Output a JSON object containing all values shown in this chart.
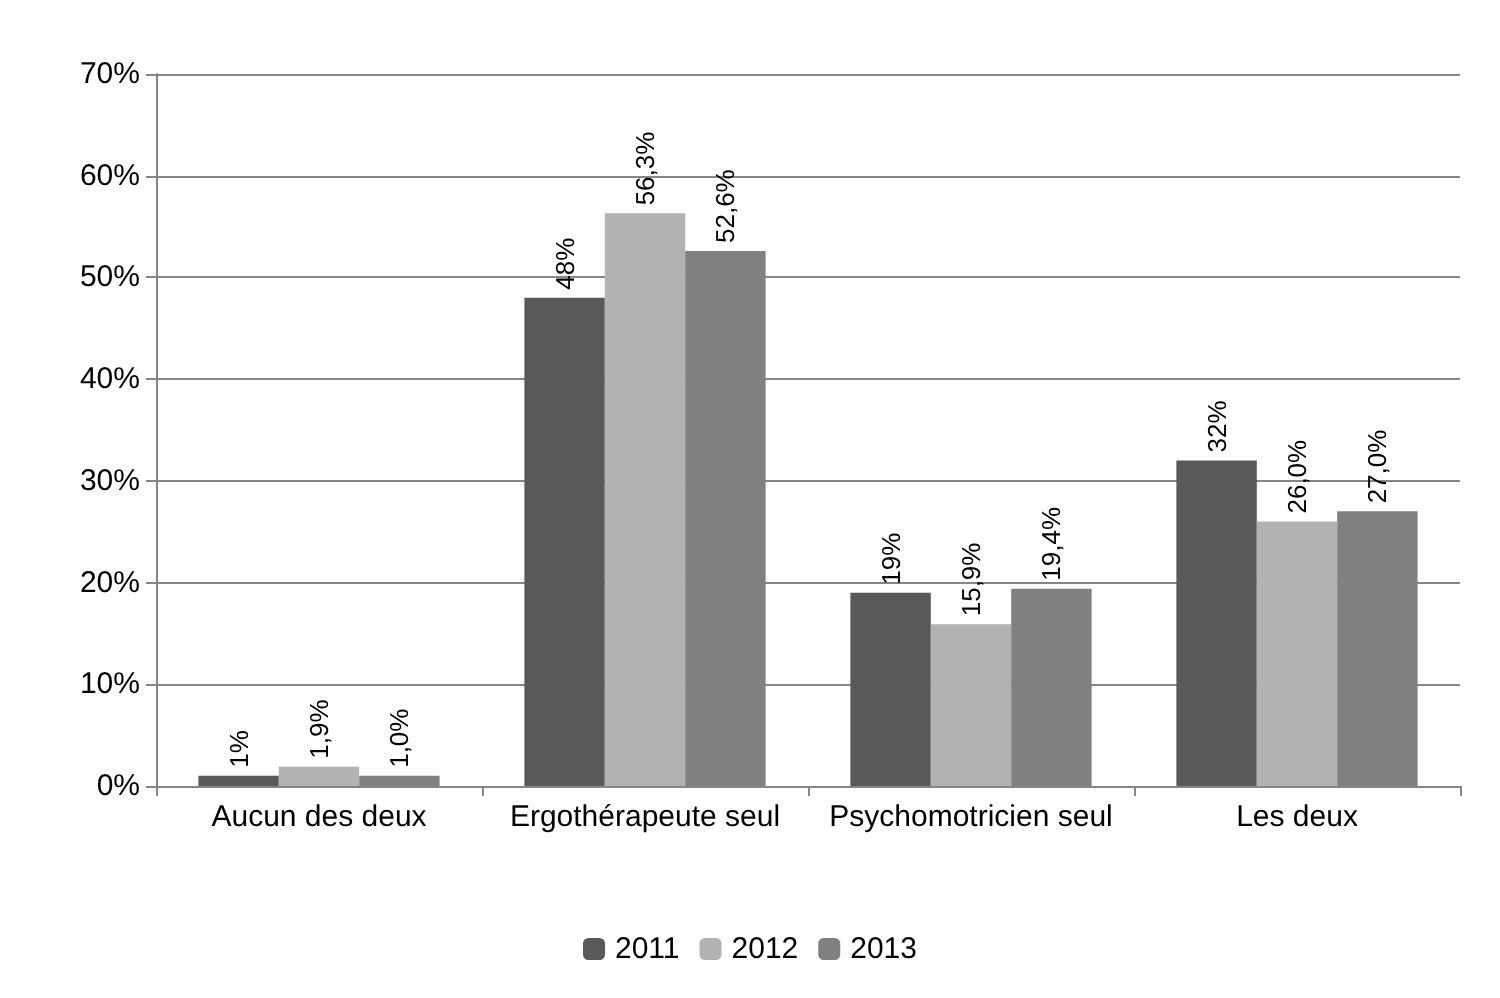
{
  "chart_data": {
    "type": "bar",
    "categories": [
      "Aucun des deux",
      "Ergothérapeute seul",
      "Psychomotricien seul",
      "Les deux"
    ],
    "series": [
      {
        "name": "2011",
        "color": "#595959",
        "values": [
          1,
          48,
          19,
          32
        ],
        "value_labels": [
          "1%",
          "48%",
          "19%",
          "32%"
        ]
      },
      {
        "name": "2012",
        "color": "#b2b2b2",
        "values": [
          1.9,
          56.3,
          15.9,
          26.0
        ],
        "value_labels": [
          "1,9%",
          "56,3%",
          "15,9%",
          "26,0%"
        ]
      },
      {
        "name": "2013",
        "color": "#808080",
        "values": [
          1.0,
          52.6,
          19.4,
          27.0
        ],
        "value_labels": [
          "1,0%",
          "52,6%",
          "19,4%",
          "27,0%"
        ]
      }
    ],
    "ylim": [
      0,
      70
    ],
    "yticks": [
      {
        "value": 0,
        "label": "0%"
      },
      {
        "value": 10,
        "label": "10%"
      },
      {
        "value": 20,
        "label": "20%"
      },
      {
        "value": 30,
        "label": "30%"
      },
      {
        "value": 40,
        "label": "40%"
      },
      {
        "value": 50,
        "label": "50%"
      },
      {
        "value": 60,
        "label": "60%"
      },
      {
        "value": 70,
        "label": "70%"
      }
    ],
    "grid": "y",
    "legend": "bottom"
  }
}
